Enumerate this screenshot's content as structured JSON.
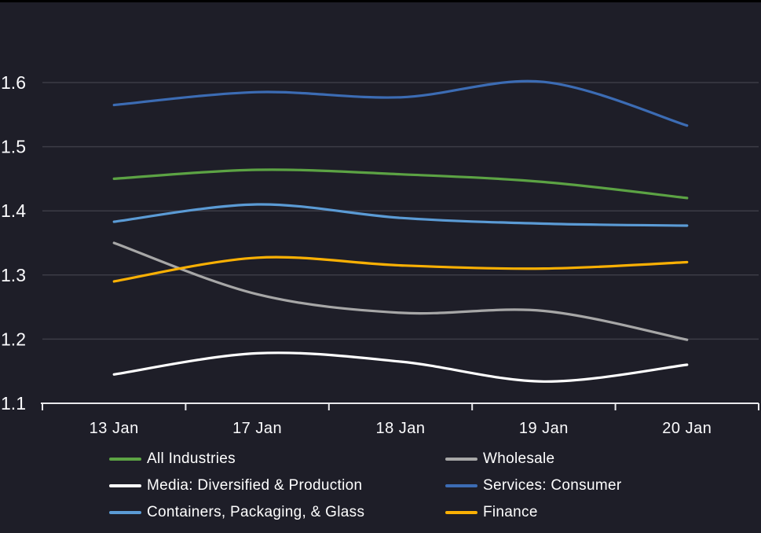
{
  "chart_data": {
    "type": "line",
    "x_categories": [
      "13 Jan",
      "17 Jan",
      "18 Jan",
      "19 Jan",
      "20 Jan"
    ],
    "y_ticks": [
      1.6,
      1.5,
      1.4,
      1.3,
      1.2,
      1.1
    ],
    "ylim": [
      1.1,
      1.6
    ],
    "grid": true,
    "legend_position": "bottom",
    "series": [
      {
        "name": "All Industries",
        "color": "#5ca344",
        "values": [
          1.45,
          1.464,
          1.457,
          1.445,
          1.42
        ]
      },
      {
        "name": "Wholesale",
        "color": "#a7a7a7",
        "values": [
          1.35,
          1.27,
          1.241,
          1.244,
          1.199
        ]
      },
      {
        "name": "Media: Diversified & Production",
        "color": "#ffffff",
        "values": [
          1.145,
          1.178,
          1.165,
          1.134,
          1.16
        ]
      },
      {
        "name": "Services: Consumer",
        "color": "#3c6cb4",
        "values": [
          1.565,
          1.585,
          1.577,
          1.601,
          1.533
        ]
      },
      {
        "name": "Containers, Packaging, & Glass",
        "color": "#5b9bd5",
        "values": [
          1.383,
          1.41,
          1.389,
          1.38,
          1.377
        ]
      },
      {
        "name": "Finance",
        "color": "#f9b004",
        "values": [
          1.29,
          1.327,
          1.315,
          1.31,
          1.32
        ]
      }
    ]
  },
  "colors": {
    "background": "#1e1e28",
    "gridline": "#3c3c46",
    "axis": "#e9e9ec",
    "label_text": "#fbfbfd"
  }
}
